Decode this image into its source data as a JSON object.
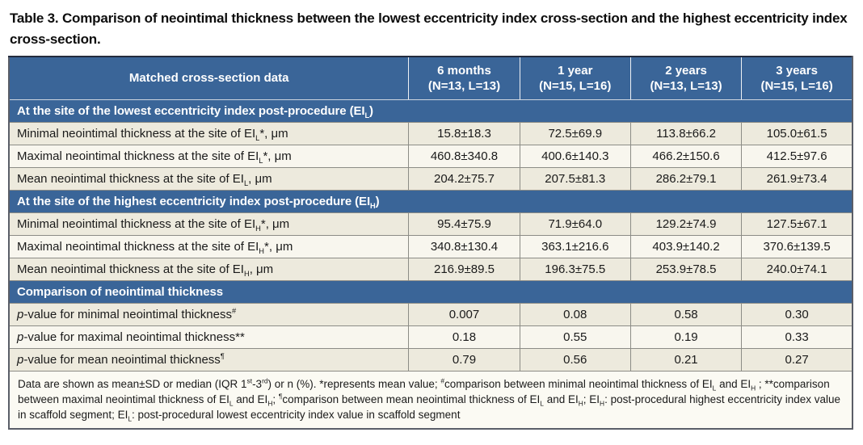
{
  "title": "Table 3. Comparison of neointimal thickness between the lowest eccentricity index cross-section and the highest eccentricity index cross-section.",
  "colors": {
    "header_bg": "#3a6598",
    "row_dark": "#edeadd",
    "row_light": "#f8f6ee",
    "footnote_bg": "#fbfaf3",
    "border": "#8c8c86",
    "header_text": "#ffffff",
    "body_text": "#1a1a1a"
  },
  "table": {
    "header": {
      "label_column": "Matched cross-section data",
      "columns": [
        {
          "line1": "6 months",
          "line2": "(N=13, L=13)"
        },
        {
          "line1": "1 year",
          "line2": "(N=15, L=16)"
        },
        {
          "line1": "2 years",
          "line2": "(N=13, L=13)"
        },
        {
          "line1": "3 years",
          "line2": "(N=15, L=16)"
        }
      ]
    },
    "sections": [
      {
        "header": [
          {
            "t": "At the site of the lowest eccentricity index post-procedure (EI"
          },
          {
            "sub": "L"
          },
          {
            "t": ")"
          }
        ],
        "rows": [
          {
            "label": [
              {
                "t": "Minimal neointimal thickness at the site of EI"
              },
              {
                "sub": "L"
              },
              {
                "t": "*, μm"
              }
            ],
            "values": [
              "15.8±18.3",
              "72.5±69.9",
              "113.8±66.2",
              "105.0±61.5"
            ]
          },
          {
            "label": [
              {
                "t": "Maximal neointimal thickness at the site of EI"
              },
              {
                "sub": "L"
              },
              {
                "t": "*, μm"
              }
            ],
            "values": [
              "460.8±340.8",
              "400.6±140.3",
              "466.2±150.6",
              "412.5±97.6"
            ]
          },
          {
            "label": [
              {
                "t": "Mean neointimal thickness at the site of EI"
              },
              {
                "sub": "L"
              },
              {
                "t": ", μm"
              }
            ],
            "values": [
              "204.2±75.7",
              "207.5±81.3",
              "286.2±79.1",
              "261.9±73.4"
            ]
          }
        ]
      },
      {
        "header": [
          {
            "t": "At the site of the highest eccentricity index post-procedure (EI"
          },
          {
            "sub": "H"
          },
          {
            "t": ")"
          }
        ],
        "rows": [
          {
            "label": [
              {
                "t": "Minimal neointimal thickness at the site of EI"
              },
              {
                "sub": "H"
              },
              {
                "t": "*, μm"
              }
            ],
            "values": [
              "95.4±75.9",
              "71.9±64.0",
              "129.2±74.9",
              "127.5±67.1"
            ]
          },
          {
            "label": [
              {
                "t": "Maximal neointimal thickness at the site of EI"
              },
              {
                "sub": "H"
              },
              {
                "t": "*, μm"
              }
            ],
            "values": [
              "340.8±130.4",
              "363.1±216.6",
              "403.9±140.2",
              "370.6±139.5"
            ]
          },
          {
            "label": [
              {
                "t": "Mean neointimal thickness at the site of EI"
              },
              {
                "sub": "H"
              },
              {
                "t": ", μm"
              }
            ],
            "values": [
              "216.9±89.5",
              "196.3±75.5",
              "253.9±78.5",
              "240.0±74.1"
            ]
          }
        ]
      },
      {
        "header": [
          {
            "t": "Comparison of neointimal thickness"
          }
        ],
        "rows": [
          {
            "label": [
              {
                "i": "p"
              },
              {
                "t": "-value for minimal neointimal thickness"
              },
              {
                "sup": "#"
              }
            ],
            "values": [
              "0.007",
              "0.08",
              "0.58",
              "0.30"
            ]
          },
          {
            "label": [
              {
                "i": "p"
              },
              {
                "t": "-value for maximal neointimal thickness**"
              }
            ],
            "values": [
              "0.18",
              "0.55",
              "0.19",
              "0.33"
            ]
          },
          {
            "label": [
              {
                "i": "p"
              },
              {
                "t": "-value for mean neointimal thickness"
              },
              {
                "sup": "¶"
              }
            ],
            "values": [
              "0.79",
              "0.56",
              "0.21",
              "0.27"
            ]
          }
        ]
      }
    ],
    "footnote": [
      {
        "t": "Data are shown as mean±SD or median (IQR 1"
      },
      {
        "sup": "st"
      },
      {
        "t": "-3"
      },
      {
        "sup": "rd"
      },
      {
        "t": ") or n (%). *represents mean value; "
      },
      {
        "sup": "#"
      },
      {
        "t": "comparison between minimal neointimal thickness of EI"
      },
      {
        "sub": "L"
      },
      {
        "t": " and EI"
      },
      {
        "sub": "H"
      },
      {
        "t": " ; **comparison between maximal neointimal thickness of EI"
      },
      {
        "sub": "L"
      },
      {
        "t": " and EI"
      },
      {
        "sub": "H"
      },
      {
        "t": "; "
      },
      {
        "sup": "¶"
      },
      {
        "t": "comparison between mean neointimal thickness of EI"
      },
      {
        "sub": "L"
      },
      {
        "t": " and EI"
      },
      {
        "sub": "H"
      },
      {
        "t": "; EI"
      },
      {
        "sub": "H"
      },
      {
        "t": ": post-procedural highest eccentricity index value in scaffold segment; EI"
      },
      {
        "sub": "L"
      },
      {
        "t": ": post-procedural lowest eccentricity index value in scaffold segment"
      }
    ]
  }
}
